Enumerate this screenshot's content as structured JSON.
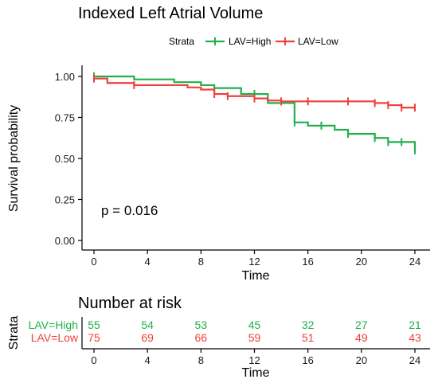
{
  "chart_data": [
    {
      "type": "line",
      "title": "Indexed Left Atrial Volume",
      "xlabel": "Time",
      "ylabel": "Survival probability",
      "xlim": [
        0,
        24
      ],
      "ylim": [
        0,
        1
      ],
      "x_ticks": [
        "0",
        "4",
        "8",
        "12",
        "16",
        "20",
        "24"
      ],
      "y_ticks": [
        "0.00",
        "0.25",
        "0.50",
        "0.75",
        "1.00"
      ],
      "legend": {
        "title": "Strata",
        "placement": "top",
        "entries": [
          "LAV=High",
          "LAV=Low"
        ]
      },
      "annotation": "p = 0.016",
      "series": [
        {
          "name": "LAV=High",
          "color": "#20b04b",
          "step": [
            [
              0,
              1.0
            ],
            [
              3,
              0.982
            ],
            [
              6,
              0.965
            ],
            [
              8,
              0.947
            ],
            [
              9,
              0.929
            ],
            [
              11,
              0.893
            ],
            [
              13,
              0.838
            ],
            [
              15,
              0.72
            ],
            [
              16,
              0.7
            ],
            [
              18,
              0.675
            ],
            [
              19,
              0.65
            ],
            [
              21,
              0.625
            ],
            [
              22,
              0.6
            ],
            [
              24,
              0.55
            ]
          ],
          "censored": [
            [
              0,
              1.0
            ],
            [
              12,
              0.893
            ],
            [
              15,
              0.72
            ],
            [
              17,
              0.7
            ],
            [
              19,
              0.65
            ],
            [
              21,
              0.625
            ],
            [
              22,
              0.6
            ],
            [
              23,
              0.6
            ],
            [
              24,
              0.55
            ]
          ]
        },
        {
          "name": "LAV=Low",
          "color": "#f0403b",
          "step": [
            [
              0,
              0.987
            ],
            [
              1,
              0.96
            ],
            [
              3,
              0.947
            ],
            [
              7,
              0.933
            ],
            [
              8,
              0.92
            ],
            [
              9,
              0.893
            ],
            [
              10,
              0.88
            ],
            [
              12,
              0.866
            ],
            [
              13,
              0.853
            ],
            [
              14,
              0.848
            ],
            [
              21,
              0.838
            ],
            [
              22,
              0.825
            ],
            [
              23,
              0.81
            ],
            [
              24,
              0.81
            ]
          ],
          "censored": [
            [
              0,
              0.987
            ],
            [
              3,
              0.947
            ],
            [
              9,
              0.893
            ],
            [
              10,
              0.88
            ],
            [
              12,
              0.866
            ],
            [
              14,
              0.848
            ],
            [
              16,
              0.848
            ],
            [
              19,
              0.848
            ],
            [
              21,
              0.838
            ],
            [
              22,
              0.825
            ],
            [
              23,
              0.81
            ],
            [
              24,
              0.81
            ]
          ]
        }
      ]
    },
    {
      "type": "table",
      "title": "Number at risk",
      "xlabel": "Time",
      "ylabel": "Strata",
      "times": [
        0,
        4,
        8,
        12,
        16,
        20,
        24
      ],
      "x_ticks": [
        "0",
        "4",
        "8",
        "12",
        "16",
        "20",
        "24"
      ],
      "rows": [
        {
          "name": "LAV=High",
          "color": "#20b04b",
          "values": [
            55,
            54,
            53,
            45,
            32,
            27,
            21
          ]
        },
        {
          "name": "LAV=Low",
          "color": "#f0403b",
          "values": [
            75,
            69,
            66,
            59,
            51,
            49,
            43
          ]
        }
      ]
    }
  ]
}
